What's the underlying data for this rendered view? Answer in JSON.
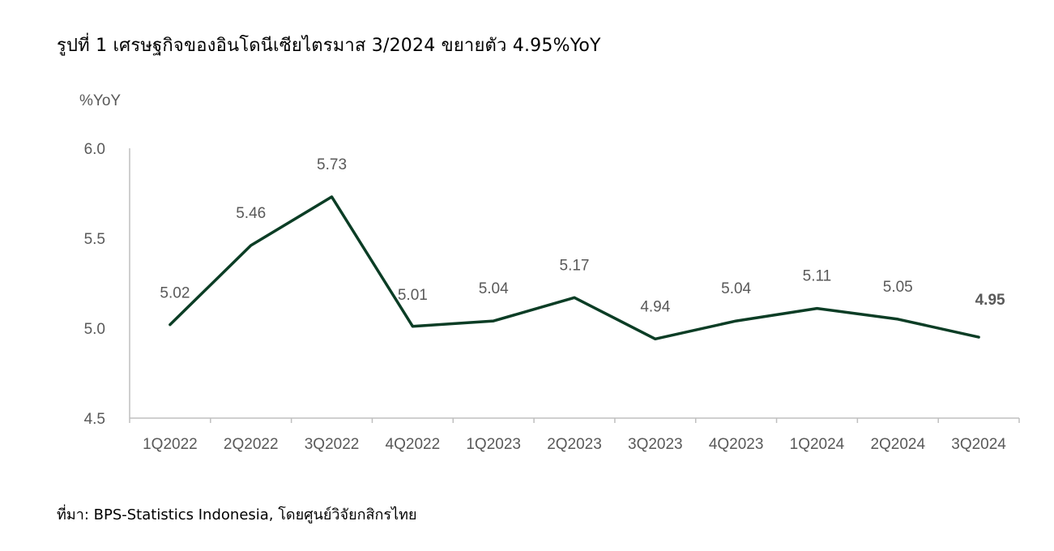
{
  "title": "รูปที่ 1 เศรษฐกิจของอินโดนีเซียไตรมาส 3/2024 ขยายตัว 4.95%YoY",
  "source": "ที่มา: BPS-Statistics Indonesia, โดยศูนย์วิจัยกสิกรไทย",
  "colors": {
    "line": "#0b3d25",
    "axis": "#bfbfbf",
    "text": "#595959",
    "highlight_label": "#0b3d25",
    "last_label": "#595959"
  },
  "chart_data": {
    "type": "line",
    "ylabel": "%YoY",
    "ylim": [
      4.5,
      6.0
    ],
    "yticks": [
      "4.5",
      "5.0",
      "5.5",
      "6.0"
    ],
    "grid": false,
    "categories": [
      "1Q2022",
      "2Q2022",
      "3Q2022",
      "4Q2022",
      "1Q2023",
      "2Q2023",
      "3Q2023",
      "4Q2023",
      "1Q2024",
      "2Q2024",
      "3Q2024"
    ],
    "series": [
      {
        "values": [
          5.02,
          5.46,
          5.73,
          5.01,
          5.04,
          5.17,
          4.94,
          5.04,
          5.11,
          5.05,
          4.95
        ],
        "labels": [
          "5.02",
          "5.46",
          "5.73",
          "5.01",
          "5.04",
          "5.17",
          "4.94",
          "5.04",
          "5.11",
          "5.05",
          "4.95"
        ]
      }
    ]
  }
}
